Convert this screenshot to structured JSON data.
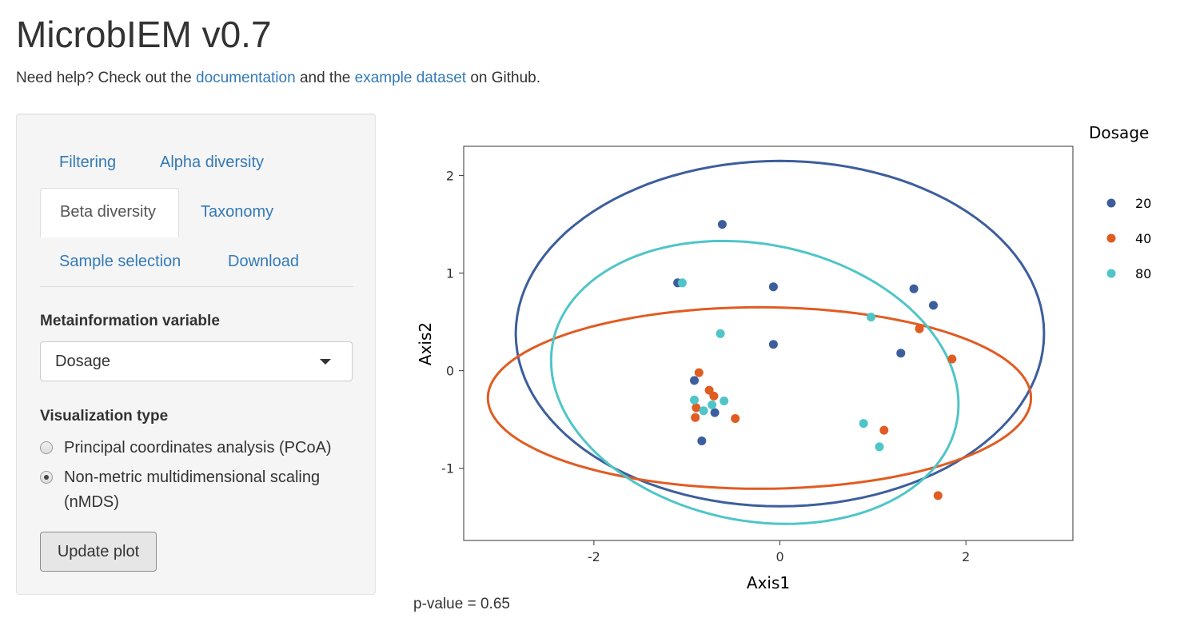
{
  "app": {
    "title": "MicrobIEM v0.7",
    "help_prefix": "Need help? Check out the",
    "help_link_docs": "documentation",
    "help_middle": "and the",
    "help_link_example": "example dataset",
    "help_suffix": "on Github."
  },
  "tabs": [
    {
      "label": "Filtering",
      "active": false
    },
    {
      "label": "Alpha diversity",
      "active": false
    },
    {
      "label": "Beta diversity",
      "active": true
    },
    {
      "label": "Taxonomy",
      "active": false
    },
    {
      "label": "Sample selection",
      "active": false
    },
    {
      "label": "Download",
      "active": false
    }
  ],
  "controls": {
    "meta_label": "Metainformation variable",
    "meta_value": "Dosage",
    "viz_label": "Visualization type",
    "viz_options": [
      {
        "label": "Principal coordinates analysis (PCoA)",
        "selected": false
      },
      {
        "label": "Non-metric multidimensional scaling",
        "label_line2": "(nMDS)",
        "selected": true
      }
    ],
    "update_button": "Update plot"
  },
  "pvalue_text": "p-value = 0.65",
  "chart_data": {
    "type": "scatter",
    "xlabel": "Axis1",
    "ylabel": "Axis2",
    "xlim": [
      -3.4,
      3.15
    ],
    "ylim": [
      -1.74,
      2.3
    ],
    "xticks": [
      -2,
      0,
      2
    ],
    "yticks": [
      -1,
      0,
      1,
      2
    ],
    "legend_title": "Dosage",
    "legend_position": "right",
    "series": [
      {
        "name": "20",
        "color": "#3d5e9d",
        "points": [
          [
            -1.1,
            0.9
          ],
          [
            -0.62,
            1.5
          ],
          [
            -0.07,
            0.86
          ],
          [
            -0.07,
            0.27
          ],
          [
            1.44,
            0.84
          ],
          [
            1.65,
            0.67
          ],
          [
            1.3,
            0.18
          ],
          [
            -0.92,
            -0.1
          ],
          [
            -0.7,
            -0.43
          ],
          [
            -0.84,
            -0.72
          ]
        ],
        "ellipse": {
          "cx": 0.0,
          "cy": 0.38,
          "rx": 2.84,
          "ry": 1.77,
          "angle": 0
        }
      },
      {
        "name": "40",
        "color": "#e05c22",
        "points": [
          [
            -0.87,
            -0.02
          ],
          [
            -0.76,
            -0.2
          ],
          [
            -0.71,
            -0.26
          ],
          [
            -0.9,
            -0.38
          ],
          [
            -0.91,
            -0.48
          ],
          [
            -0.48,
            -0.49
          ],
          [
            1.5,
            0.43
          ],
          [
            1.85,
            0.12
          ],
          [
            1.12,
            -0.61
          ],
          [
            1.7,
            -1.28
          ]
        ],
        "ellipse": {
          "cx": -0.22,
          "cy": -0.28,
          "rx": 2.92,
          "ry": 0.93,
          "angle": 0
        }
      },
      {
        "name": "80",
        "color": "#4fc5c8",
        "points": [
          [
            -1.05,
            0.9
          ],
          [
            -0.64,
            0.38
          ],
          [
            -0.92,
            -0.3
          ],
          [
            -0.6,
            -0.31
          ],
          [
            -0.73,
            -0.35
          ],
          [
            -0.82,
            -0.41
          ],
          [
            0.98,
            0.55
          ],
          [
            0.9,
            -0.54
          ],
          [
            1.07,
            -0.78
          ]
        ],
        "ellipse": {
          "cx": -0.27,
          "cy": -0.12,
          "rx": 2.21,
          "ry": 1.42,
          "angle": -10
        }
      }
    ]
  }
}
